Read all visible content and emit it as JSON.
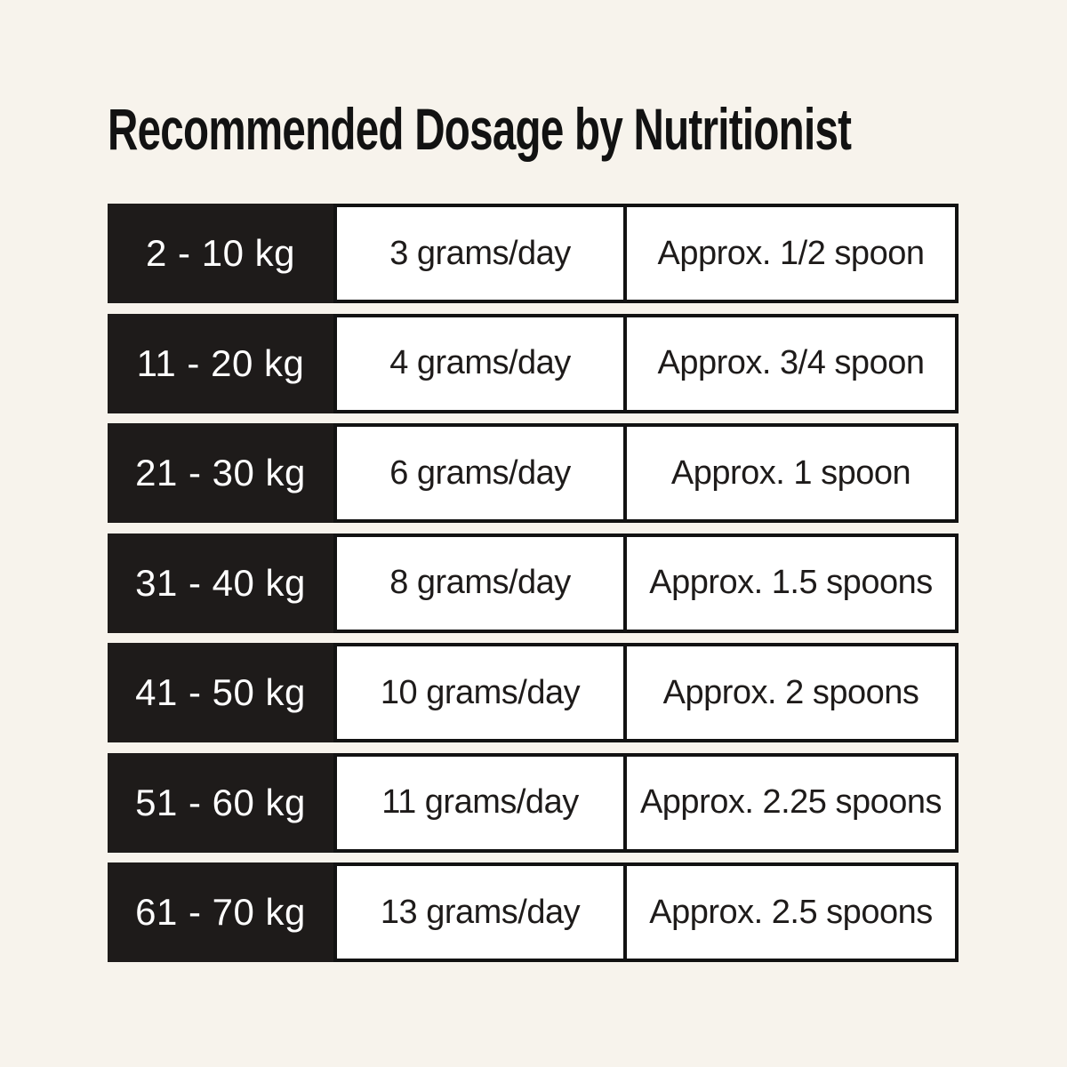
{
  "page": {
    "title": "Recommended Dosage by Nutritionist",
    "background_color": "#f7f3ec",
    "title_color": "#121212"
  },
  "colors": {
    "weight_cell_bg": "#1e1b1a",
    "weight_cell_text": "#ffffff",
    "value_cell_bg": "#ffffff",
    "value_cell_border": "#121212",
    "value_cell_text": "#1e1b1a"
  },
  "table": {
    "columns": [
      "weight_range",
      "grams_per_day",
      "spoon_equivalent"
    ],
    "rows": [
      {
        "weight": "2 - 10 kg",
        "dosage": "3 grams/day",
        "spoons": "Approx. 1/2 spoon"
      },
      {
        "weight": "11 - 20 kg",
        "dosage": "4 grams/day",
        "spoons": "Approx. 3/4 spoon"
      },
      {
        "weight": "21 - 30 kg",
        "dosage": "6 grams/day",
        "spoons": "Approx. 1 spoon"
      },
      {
        "weight": "31 - 40 kg",
        "dosage": "8 grams/day",
        "spoons": "Approx. 1.5 spoons"
      },
      {
        "weight": "41 - 50 kg",
        "dosage": "10 grams/day",
        "spoons": "Approx. 2 spoons"
      },
      {
        "weight": "51 - 60 kg",
        "dosage": "11 grams/day",
        "spoons": "Approx. 2.25 spoons"
      },
      {
        "weight": "61 - 70 kg",
        "dosage": "13 grams/day",
        "spoons": "Approx. 2.5 spoons"
      }
    ]
  }
}
